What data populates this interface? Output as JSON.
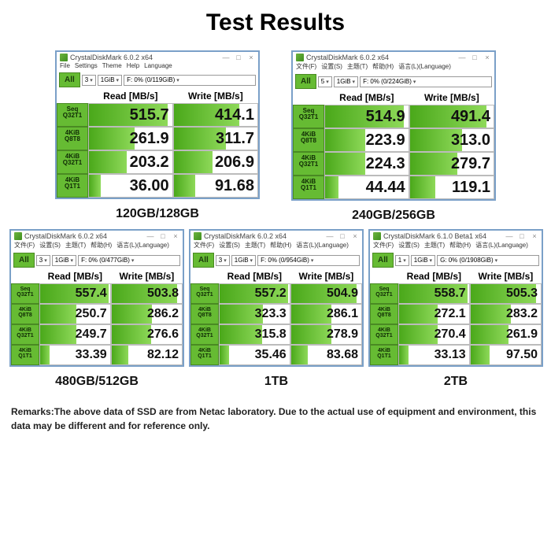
{
  "title": "Test Results",
  "remarks": "Remarks:The above data of SSD are from Netac laboratory. Due to the actual use of equipment and environment, this data may be different and for reference only.",
  "rowLabels": [
    {
      "l1": "Seq",
      "l2": "Q32T1"
    },
    {
      "l1": "4KiB",
      "l2": "Q8T8"
    },
    {
      "l1": "4KiB",
      "l2": "Q32T1"
    },
    {
      "l1": "4KiB",
      "l2": "Q1T1"
    }
  ],
  "headers": {
    "read": "Read [MB/s]",
    "write": "Write [MB/s]",
    "all": "All"
  },
  "winBtns": {
    "min": "—",
    "max": "□",
    "close": "×"
  },
  "panels": [
    {
      "id": "p120",
      "size": "lg",
      "label": "120GB/128GB",
      "appTitle": "CrystalDiskMark 6.0.2 x64",
      "menu": [
        "File",
        "Settings",
        "Theme",
        "Help",
        "Language"
      ],
      "dd": {
        "count": "3",
        "size": "1GiB",
        "drive": "F: 0% (0/119GiB)"
      },
      "rows": [
        {
          "r": "515.7",
          "rw": 95,
          "w": "414.1",
          "ww": 78
        },
        {
          "r": "261.9",
          "rw": 55,
          "w": "311.7",
          "ww": 62
        },
        {
          "r": "203.2",
          "rw": 45,
          "w": "206.9",
          "ww": 46
        },
        {
          "r": "36.00",
          "rw": 14,
          "w": "91.68",
          "ww": 26
        }
      ]
    },
    {
      "id": "p240",
      "size": "lg",
      "label": "240GB/256GB",
      "appTitle": "CrystalDiskMark 6.0.2 x64",
      "menu": [
        "文件(F)",
        "设置(S)",
        "主题(T)",
        "帮助(H)",
        "语言(L)(Language)"
      ],
      "dd": {
        "count": "5",
        "size": "1GiB",
        "drive": "F: 0% (0/224GiB)"
      },
      "rows": [
        {
          "r": "514.9",
          "rw": 95,
          "w": "491.4",
          "ww": 92
        },
        {
          "r": "223.9",
          "rw": 48,
          "w": "313.0",
          "ww": 62
        },
        {
          "r": "224.3",
          "rw": 48,
          "w": "279.7",
          "ww": 57
        },
        {
          "r": "44.44",
          "rw": 16,
          "w": "119.1",
          "ww": 30
        }
      ]
    },
    {
      "id": "p480",
      "size": "sm",
      "label": "480GB/512GB",
      "appTitle": "CrystalDiskMark 6.0.2 x64",
      "menu": [
        "文件(F)",
        "设置(S)",
        "主题(T)",
        "帮助(H)",
        "语言(L)(Language)"
      ],
      "dd": {
        "count": "3",
        "size": "1GiB",
        "drive": "F: 0% (0/477GiB)"
      },
      "rows": [
        {
          "r": "557.4",
          "rw": 98,
          "w": "503.8",
          "ww": 93
        },
        {
          "r": "250.7",
          "rw": 52,
          "w": "286.2",
          "ww": 58
        },
        {
          "r": "249.7",
          "rw": 52,
          "w": "276.6",
          "ww": 56
        },
        {
          "r": "33.39",
          "rw": 13,
          "w": "82.12",
          "ww": 24
        }
      ]
    },
    {
      "id": "p1tb",
      "size": "sm",
      "label": "1TB",
      "appTitle": "CrystalDiskMark 6.0.2 x64",
      "menu": [
        "文件(F)",
        "设置(S)",
        "主题(T)",
        "帮助(H)",
        "语言(L)(Language)"
      ],
      "dd": {
        "count": "3",
        "size": "1GiB",
        "drive": "F: 0% (0/954GiB)"
      },
      "rows": [
        {
          "r": "557.2",
          "rw": 98,
          "w": "504.9",
          "ww": 93
        },
        {
          "r": "323.3",
          "rw": 62,
          "w": "286.1",
          "ww": 58
        },
        {
          "r": "315.8",
          "rw": 61,
          "w": "278.9",
          "ww": 57
        },
        {
          "r": "35.46",
          "rw": 14,
          "w": "83.68",
          "ww": 24
        }
      ]
    },
    {
      "id": "p2tb",
      "size": "sm",
      "label": "2TB",
      "appTitle": "CrystalDiskMark 6.1.0 Beta1 x64",
      "menu": [
        "文件(F)",
        "设置(S)",
        "主题(T)",
        "帮助(H)",
        "语言(L)(Language)"
      ],
      "dd": {
        "count": "1",
        "size": "1GiB",
        "drive": "G: 0% (0/1908GiB)"
      },
      "rows": [
        {
          "r": "558.7",
          "rw": 98,
          "w": "505.3",
          "ww": 93
        },
        {
          "r": "272.1",
          "rw": 55,
          "w": "283.2",
          "ww": 57
        },
        {
          "r": "270.4",
          "rw": 55,
          "w": "261.9",
          "ww": 54
        },
        {
          "r": "33.13",
          "rw": 13,
          "w": "97.50",
          "ww": 27
        }
      ]
    }
  ]
}
